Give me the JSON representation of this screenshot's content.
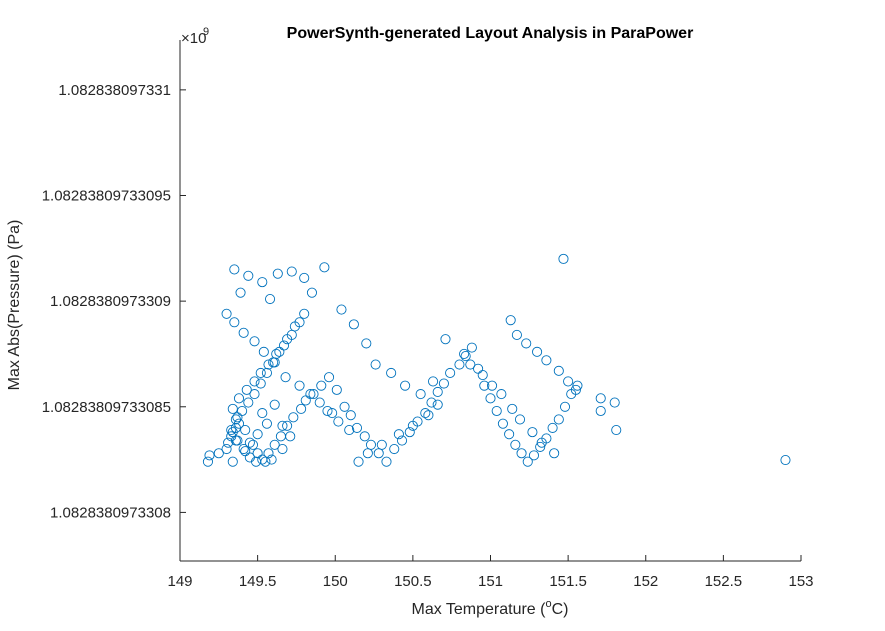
{
  "chart_data": {
    "type": "scatter",
    "title": "PowerSynth-generated Layout Analysis in ParaPower",
    "xlabel": {
      "pre": "Max Temperature (",
      "sup": "o",
      "post": "C)"
    },
    "ylabel": "Max Abs(Pressure) (Pa)",
    "y_exponent": {
      "base": "×10",
      "power": "9"
    },
    "x_ticks": [
      149,
      149.5,
      150,
      150.5,
      151,
      151.5,
      152,
      152.5,
      153
    ],
    "x_tick_labels": [
      "149",
      "149.5",
      "150",
      "150.5",
      "151",
      "151.5",
      "152",
      "152.5",
      "153"
    ],
    "y_tick_labels": [
      "1.082838097331",
      "1.08283809733095",
      "1.0828380973309",
      "1.08283809733085",
      "1.0828380973308"
    ],
    "y_tick_values": [
      1.0,
      0.75,
      0.5,
      0.25,
      0.0
    ],
    "y_scale_note": "y values expressed relative to tick range (0 = 1.0828380973308, 1 = 1.082838097331)",
    "xlim": [
      149,
      153
    ],
    "ylim": [
      -0.115,
      1.118
    ],
    "marker_color": "#0072BD",
    "grid": false,
    "x": [
      149.19,
      149.18,
      149.25,
      149.31,
      149.34,
      149.36,
      149.33,
      149.3,
      149.38,
      149.36,
      149.34,
      149.42,
      149.47,
      149.5,
      149.56,
      149.53,
      149.61,
      149.66,
      149.71,
      149.66,
      149.59,
      149.55,
      149.5,
      149.45,
      149.42,
      149.37,
      149.34,
      149.38,
      149.43,
      149.48,
      149.52,
      149.57,
      149.62,
      149.67,
      149.72,
      149.77,
      149.8,
      149.74,
      149.69,
      149.64,
      149.6,
      149.56,
      149.52,
      149.48,
      149.44,
      149.4,
      149.36,
      149.33,
      149.37,
      149.41,
      149.45,
      149.49,
      149.53,
      149.57,
      149.61,
      149.65,
      149.69,
      149.73,
      149.78,
      149.81,
      149.86,
      149.91,
      149.96,
      150.01,
      150.06,
      150.1,
      150.14,
      150.19,
      150.23,
      150.28,
      150.33,
      150.38,
      150.43,
      150.48,
      150.53,
      150.58,
      150.62,
      150.66,
      150.7,
      150.74,
      150.8,
      150.84,
      150.88,
      150.92,
      150.96,
      151.0,
      151.04,
      151.08,
      151.12,
      151.16,
      151.2,
      151.24,
      151.28,
      151.32,
      151.36,
      151.4,
      151.44,
      151.48,
      151.52,
      151.56,
      151.71,
      151.81,
      152.9,
      149.95,
      149.93,
      149.63,
      149.58,
      149.53,
      149.44,
      149.39,
      149.35,
      149.72,
      149.8,
      149.85,
      150.04,
      150.12,
      150.2,
      150.26,
      150.36,
      150.45,
      150.55,
      150.63,
      150.71,
      150.83,
      150.87,
      150.95,
      151.01,
      151.07,
      151.14,
      151.19,
      151.27,
      151.33,
      151.41,
      151.47,
      151.13,
      151.17,
      151.23,
      151.3,
      151.36,
      151.44,
      151.5,
      151.55,
      151.71,
      151.8,
      150.66,
      150.6,
      150.5,
      150.41,
      150.3,
      150.21,
      150.15,
      150.09,
      150.02,
      149.98,
      149.9,
      149.84,
      149.77,
      149.68,
      149.61,
      149.54,
      149.48,
      149.41,
      149.35,
      149.3
    ],
    "y": [
      0.135,
      0.12,
      0.14,
      0.165,
      0.19,
      0.2,
      0.18,
      0.15,
      0.21,
      0.17,
      0.12,
      0.145,
      0.16,
      0.185,
      0.21,
      0.235,
      0.255,
      0.205,
      0.18,
      0.15,
      0.125,
      0.12,
      0.14,
      0.165,
      0.195,
      0.225,
      0.245,
      0.27,
      0.29,
      0.31,
      0.33,
      0.35,
      0.375,
      0.395,
      0.42,
      0.45,
      0.47,
      0.44,
      0.41,
      0.38,
      0.355,
      0.33,
      0.305,
      0.28,
      0.26,
      0.24,
      0.22,
      0.195,
      0.17,
      0.15,
      0.13,
      0.12,
      0.125,
      0.14,
      0.16,
      0.18,
      0.205,
      0.225,
      0.245,
      0.265,
      0.28,
      0.3,
      0.32,
      0.29,
      0.25,
      0.23,
      0.2,
      0.18,
      0.16,
      0.14,
      0.12,
      0.15,
      0.17,
      0.19,
      0.215,
      0.235,
      0.26,
      0.285,
      0.305,
      0.33,
      0.35,
      0.37,
      0.39,
      0.34,
      0.3,
      0.27,
      0.24,
      0.21,
      0.185,
      0.16,
      0.14,
      0.12,
      0.135,
      0.155,
      0.175,
      0.2,
      0.22,
      0.25,
      0.28,
      0.3,
      0.24,
      0.195,
      0.124,
      0.24,
      0.58,
      0.565,
      0.505,
      0.545,
      0.56,
      0.52,
      0.575,
      0.57,
      0.555,
      0.52,
      0.48,
      0.445,
      0.4,
      0.35,
      0.33,
      0.3,
      0.28,
      0.31,
      0.41,
      0.375,
      0.35,
      0.325,
      0.3,
      0.28,
      0.245,
      0.22,
      0.19,
      0.165,
      0.14,
      0.6,
      0.455,
      0.42,
      0.4,
      0.38,
      0.36,
      0.335,
      0.31,
      0.29,
      0.27,
      0.26,
      0.255,
      0.23,
      0.205,
      0.185,
      0.16,
      0.14,
      0.12,
      0.195,
      0.215,
      0.235,
      0.26,
      0.28,
      0.3,
      0.32,
      0.355,
      0.38,
      0.405,
      0.425,
      0.45,
      0.47
    ]
  }
}
